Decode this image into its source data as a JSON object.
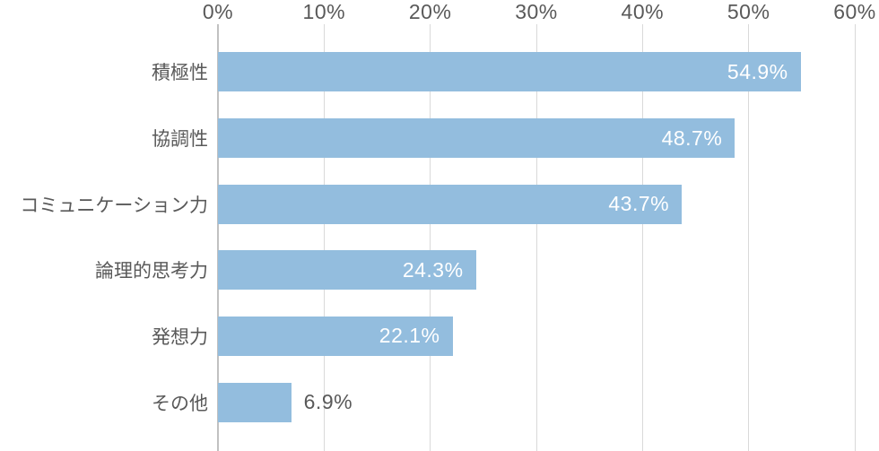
{
  "chart_data": {
    "type": "bar",
    "orientation": "horizontal",
    "title": "",
    "xlabel": "",
    "ylabel": "",
    "categories": [
      "積極性",
      "協調性",
      "コミュニケーション力",
      "論理的思考力",
      "発想力",
      "その他"
    ],
    "values": [
      54.9,
      48.7,
      43.7,
      24.3,
      22.1,
      6.9
    ],
    "value_labels": [
      "54.9%",
      "48.7%",
      "43.7%",
      "24.3%",
      "22.1%",
      "6.9%"
    ],
    "x_ticks": [
      "0%",
      "10%",
      "20%",
      "30%",
      "40%",
      "50%",
      "60%"
    ],
    "xlim": [
      0,
      60
    ],
    "grid": true,
    "legend": "none",
    "colors": {
      "bar": "#93bdde",
      "value_label_inside": "#ffffff",
      "value_label_outside": "#595959",
      "axis_text": "#595959",
      "category_text": "#595959",
      "gridline": "#d9d9d9",
      "zero_line": "#c1c1c1"
    },
    "inside_label_threshold": 10
  }
}
